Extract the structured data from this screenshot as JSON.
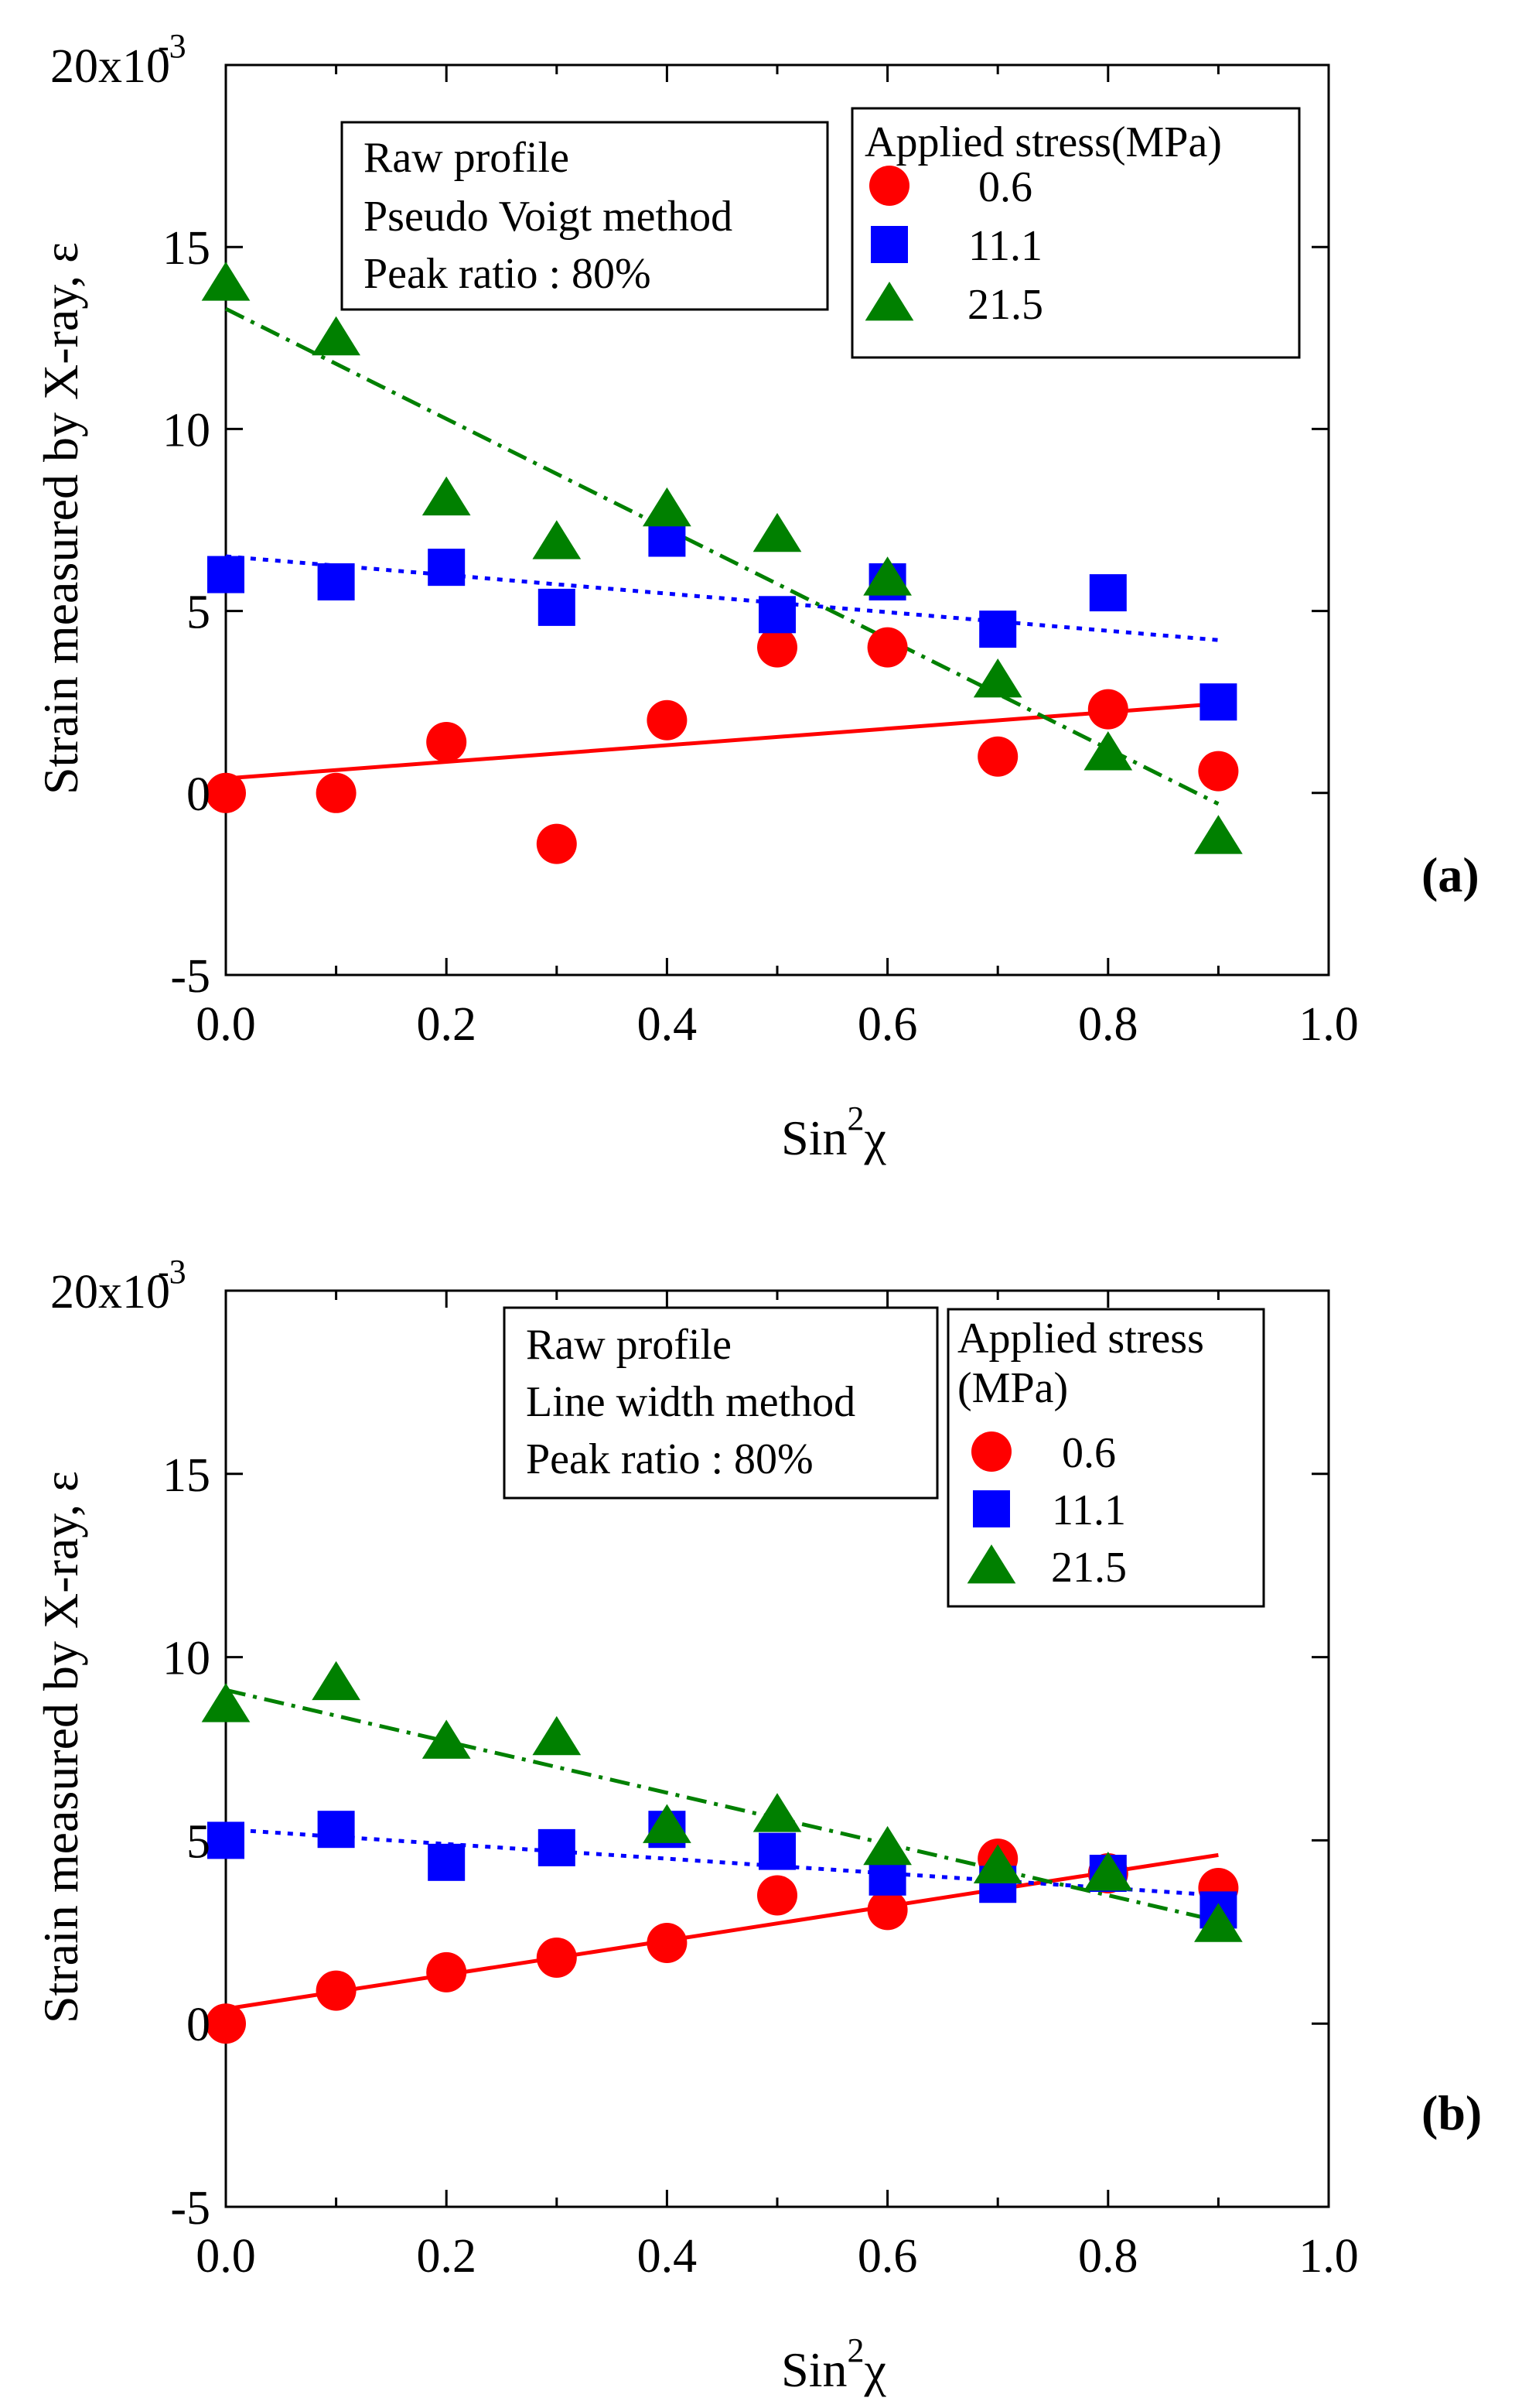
{
  "chart_data": [
    {
      "type": "scatter",
      "panel_label": "(a)",
      "xlabel": "Sin",
      "xlabel_sup": "2",
      "xlabel_tail": "χ",
      "ylabel": "Strain measured by X-ray, ε",
      "xlim": [
        0.0,
        1.0
      ],
      "ylim": [
        -5,
        20
      ],
      "xticks": [
        0.0,
        0.2,
        0.4,
        0.6,
        0.8,
        1.0
      ],
      "xtick_labels": [
        "0.0",
        "0.2",
        "0.4",
        "0.6",
        "0.8",
        "1.0"
      ],
      "yticks": [
        -5,
        0,
        5,
        10,
        15,
        20
      ],
      "ytick_labels": [
        "-5",
        "0",
        "5",
        "10",
        "15",
        "20x10"
      ],
      "y_multiplier_exp": "-3",
      "info_box": [
        "Raw profile",
        "Pseudo Voigt method",
        "Peak ratio : 80%"
      ],
      "legend_title": [
        "Applied stress(MPa)"
      ],
      "series": [
        {
          "name": "0.6",
          "marker": "circle",
          "color": "#ff0000",
          "line_style": "solid",
          "x": [
            0.0,
            0.1,
            0.2,
            0.3,
            0.4,
            0.5,
            0.6,
            0.7,
            0.8,
            0.9
          ],
          "y": [
            0.0,
            0.0,
            1.4,
            -1.4,
            2.0,
            4.0,
            4.0,
            1.0,
            2.3,
            0.6
          ],
          "fit": [
            [
              0.0,
              0.4
            ],
            [
              0.9,
              2.45
            ]
          ]
        },
        {
          "name": "11.1",
          "marker": "square",
          "color": "#0000ff",
          "line_style": "dotted",
          "x": [
            0.0,
            0.1,
            0.2,
            0.3,
            0.4,
            0.5,
            0.6,
            0.7,
            0.8,
            0.9
          ],
          "y": [
            6.0,
            5.8,
            6.2,
            5.1,
            7.0,
            4.9,
            5.8,
            4.5,
            5.5,
            2.5
          ],
          "fit": [
            [
              0.0,
              6.5
            ],
            [
              0.9,
              4.2
            ]
          ]
        },
        {
          "name": "21.5",
          "marker": "triangle",
          "color": "#008000",
          "line_style": "dashdot",
          "x": [
            0.0,
            0.1,
            0.2,
            0.3,
            0.4,
            0.5,
            0.6,
            0.7,
            0.8,
            0.9
          ],
          "y": [
            14.0,
            12.5,
            8.1,
            6.9,
            7.8,
            7.1,
            5.9,
            3.1,
            1.1,
            -1.2
          ],
          "fit": [
            [
              0.0,
              13.3
            ],
            [
              0.9,
              -0.3
            ]
          ]
        }
      ]
    },
    {
      "type": "scatter",
      "panel_label": "(b)",
      "xlabel": "Sin",
      "xlabel_sup": "2",
      "xlabel_tail": "χ",
      "ylabel": "Strain measured by X-ray, ε",
      "xlim": [
        0.0,
        1.0
      ],
      "ylim": [
        -5,
        20
      ],
      "xticks": [
        0.0,
        0.2,
        0.4,
        0.6,
        0.8,
        1.0
      ],
      "xtick_labels": [
        "0.0",
        "0.2",
        "0.4",
        "0.6",
        "0.8",
        "1.0"
      ],
      "yticks": [
        -5,
        0,
        5,
        10,
        15,
        20
      ],
      "ytick_labels": [
        "-5",
        "0",
        "5",
        "10",
        "15",
        "20x10"
      ],
      "y_multiplier_exp": "-3",
      "info_box": [
        "Raw profile",
        "Line width method",
        "Peak ratio : 80%"
      ],
      "legend_title": [
        "Applied stress",
        "(MPa)"
      ],
      "series": [
        {
          "name": "0.6",
          "marker": "circle",
          "color": "#ff0000",
          "line_style": "solid",
          "x": [
            0.0,
            0.1,
            0.2,
            0.3,
            0.4,
            0.5,
            0.6,
            0.7,
            0.8,
            0.9
          ],
          "y": [
            0.0,
            0.9,
            1.4,
            1.8,
            2.2,
            3.5,
            3.1,
            4.5,
            4.1,
            3.7
          ],
          "fit": [
            [
              0.0,
              0.4
            ],
            [
              0.9,
              4.6
            ]
          ]
        },
        {
          "name": "11.1",
          "marker": "square",
          "color": "#0000ff",
          "line_style": "dotted",
          "x": [
            0.0,
            0.1,
            0.2,
            0.3,
            0.4,
            0.5,
            0.6,
            0.7,
            0.8,
            0.9
          ],
          "y": [
            5.0,
            5.3,
            4.4,
            4.8,
            5.3,
            4.7,
            4.0,
            3.8,
            4.1,
            3.1
          ],
          "fit": [
            [
              0.0,
              5.3
            ],
            [
              0.9,
              3.5
            ]
          ]
        },
        {
          "name": "21.5",
          "marker": "triangle",
          "color": "#008000",
          "line_style": "dashdot",
          "x": [
            0.0,
            0.1,
            0.2,
            0.3,
            0.4,
            0.5,
            0.6,
            0.7,
            0.8,
            0.9
          ],
          "y": [
            8.7,
            9.3,
            7.7,
            7.8,
            5.4,
            5.7,
            4.8,
            4.3,
            4.1,
            2.7
          ],
          "fit": [
            [
              0.0,
              9.1
            ],
            [
              0.9,
              2.8
            ]
          ]
        }
      ]
    }
  ]
}
